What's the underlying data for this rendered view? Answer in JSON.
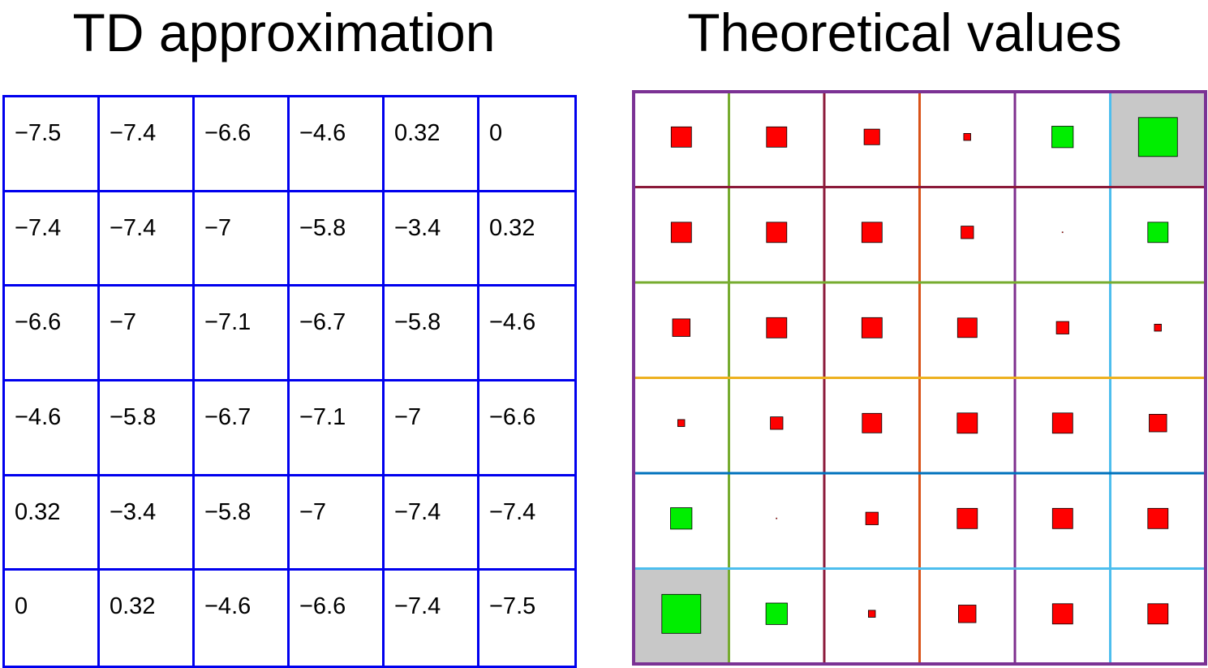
{
  "titles": {
    "left": "TD approximation",
    "right": "Theoretical values"
  },
  "td_values": [
    [
      "−7.5",
      "−7.4",
      "−6.6",
      "−4.6",
      "0.32",
      "0"
    ],
    [
      "−7.4",
      "−7.4",
      "−7",
      "−5.8",
      "−3.4",
      "0.32"
    ],
    [
      "−6.6",
      "−7",
      "−7.1",
      "−6.7",
      "−5.8",
      "−4.6"
    ],
    [
      "−4.6",
      "−5.8",
      "−6.7",
      "−7.1",
      "−7",
      "−6.6"
    ],
    [
      "0.32",
      "−3.4",
      "−5.8",
      "−7",
      "−7.4",
      "−7.4"
    ],
    [
      "0",
      "0.32",
      "−4.6",
      "−6.6",
      "−7.4",
      "−7.5"
    ]
  ],
  "theory_grid": {
    "border_color": "#7b3294",
    "terminal_fill": "#c8c8c8",
    "terminal_cells": [
      [
        0,
        5
      ],
      [
        5,
        0
      ]
    ],
    "negative_color": "#ff0000",
    "positive_color": "#00ee00",
    "vertical_line_colors": [
      "#77ac30",
      "#8b1a3a",
      "#d95319",
      "#7e2f8e",
      "#4dbeee"
    ],
    "horizontal_line_colors": [
      "#8b1a3a",
      "#77ac30",
      "#edb120",
      "#0072bd",
      "#4dbeee"
    ],
    "marker_levels": [
      [
        0.52,
        0.52,
        0.4,
        0.18,
        0.55,
        1.0
      ],
      [
        0.52,
        0.52,
        0.52,
        0.32,
        0.03,
        0.52
      ],
      [
        0.45,
        0.52,
        0.52,
        0.5,
        0.32,
        0.18
      ],
      [
        0.18,
        0.32,
        0.5,
        0.52,
        0.52,
        0.45
      ],
      [
        0.55,
        0.03,
        0.32,
        0.52,
        0.52,
        0.52
      ],
      [
        1.0,
        0.55,
        0.18,
        0.45,
        0.52,
        0.52
      ]
    ],
    "marker_signs": [
      [
        "neg",
        "neg",
        "neg",
        "neg",
        "pos",
        "pos"
      ],
      [
        "neg",
        "neg",
        "neg",
        "neg",
        "neg",
        "pos"
      ],
      [
        "neg",
        "neg",
        "neg",
        "neg",
        "neg",
        "neg"
      ],
      [
        "neg",
        "neg",
        "neg",
        "neg",
        "neg",
        "neg"
      ],
      [
        "pos",
        "neg",
        "neg",
        "neg",
        "neg",
        "neg"
      ],
      [
        "pos",
        "pos",
        "neg",
        "neg",
        "neg",
        "neg"
      ]
    ]
  }
}
